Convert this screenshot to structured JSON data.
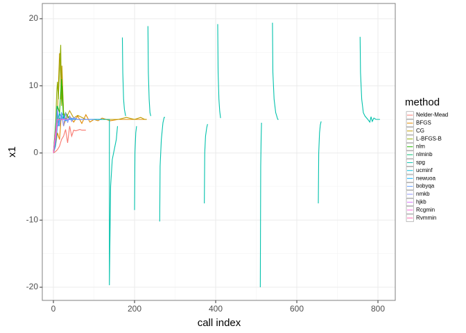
{
  "chart_data": {
    "type": "line",
    "x_label": "call index",
    "y_label": "x1",
    "legend_title": "method",
    "xlim": [
      -27.4,
      842.7
    ],
    "ylim": [
      -21.96,
      22.27
    ],
    "xticks": [
      0,
      200,
      400,
      600,
      800
    ],
    "yticks": [
      -20,
      -10,
      0,
      10,
      20
    ],
    "xminor": [
      100,
      300,
      500,
      700
    ],
    "yminor": [
      -15,
      -5,
      5,
      15
    ],
    "grid": true,
    "legend_position": "right",
    "series": [
      {
        "name": "Nelder-Mead",
        "color": "#F8766D",
        "x": [
          0,
          5,
          10,
          15,
          20,
          25,
          30,
          35,
          40,
          45,
          50,
          55,
          60,
          65,
          70,
          75,
          80
        ],
        "values": [
          0,
          0.2,
          0.5,
          1,
          2,
          2.5,
          3.5,
          1.5,
          4,
          2.5,
          3.4,
          3.3,
          3.4,
          3.5,
          3.4,
          3.4,
          3.4
        ]
      },
      {
        "name": "BFGS",
        "color": "#E18A00",
        "x": [
          0,
          5,
          10,
          15,
          20,
          25,
          30,
          40,
          50,
          60,
          70,
          80,
          90,
          100,
          110,
          120,
          140,
          160,
          180,
          200,
          220,
          230
        ],
        "values": [
          0,
          1,
          3,
          2,
          6,
          4,
          5,
          5.5,
          4.6,
          5.5,
          4.4,
          5.7,
          4.6,
          5,
          4.8,
          5.2,
          4.8,
          5,
          5,
          5,
          5,
          5
        ]
      },
      {
        "name": "CG",
        "color": "#BE9C00",
        "x": [
          0,
          5,
          10,
          15,
          17,
          19,
          21,
          25,
          30,
          40,
          50,
          60,
          70,
          80,
          100,
          120,
          140,
          160,
          180,
          200,
          215,
          225,
          230
        ],
        "values": [
          0,
          2,
          6,
          14.8,
          14.8,
          8,
          13,
          6,
          5,
          6.3,
          5.2,
          5.6,
          5.3,
          5,
          5,
          5,
          5,
          5,
          5.3,
          5,
          5.3,
          5,
          5
        ]
      },
      {
        "name": "L-BFGS-B",
        "color": "#8CAB00",
        "x": [
          0,
          5,
          8,
          10,
          12,
          15,
          18,
          20,
          22,
          25,
          30,
          35
        ],
        "values": [
          0,
          3,
          9,
          10.6,
          8,
          12,
          16.1,
          7,
          10,
          6,
          5,
          5
        ]
      },
      {
        "name": "nlm",
        "color": "#24B700",
        "x": [
          0,
          5,
          10,
          15,
          20,
          25,
          30,
          40,
          50
        ],
        "values": [
          0,
          4,
          7,
          6,
          11,
          5,
          6,
          5,
          5
        ]
      },
      {
        "name": "nlminb",
        "color": "#00BE70",
        "x": [
          0,
          5,
          10,
          15,
          20,
          25,
          30
        ],
        "values": [
          0,
          3,
          6,
          5,
          5.5,
          5,
          5
        ]
      },
      {
        "name": "spg",
        "color": "#00C1AB",
        "x": [
          0,
          3,
          6,
          9,
          12,
          15,
          20,
          25,
          30,
          40,
          60,
          80,
          100,
          120,
          135,
          138,
          138,
          141,
          145,
          150,
          155,
          158,
          164,
          170,
          171,
          173,
          175,
          178,
          189,
          200,
          201,
          203,
          205,
          219,
          233,
          234,
          236,
          238,
          240,
          251,
          262,
          263,
          266,
          270,
          273,
          275,
          323,
          372,
          373,
          375,
          378,
          380,
          392,
          405,
          406,
          408,
          410,
          412,
          461,
          510,
          511,
          512,
          513,
          526,
          540,
          541,
          544,
          548,
          553,
          555,
          604,
          653,
          654,
          656,
          658,
          660,
          708,
          756,
          757,
          760,
          764,
          768,
          775,
          780,
          783,
          786,
          790,
          795,
          805
        ],
        "values": [
          0,
          1,
          3,
          7,
          4,
          6,
          5,
          5.5,
          4.8,
          5,
          5,
          5,
          5,
          5,
          5,
          5,
          -19.7,
          -5,
          -1,
          0.5,
          2,
          4,
          null,
          17.2,
          12,
          8,
          6.5,
          5.5,
          null,
          -8.5,
          0,
          3,
          4,
          null,
          18.9,
          12,
          8,
          6,
          5.5,
          null,
          -10.2,
          -2,
          2,
          4.5,
          5.3,
          5.3,
          null,
          -7.5,
          0,
          2.5,
          3.8,
          4.3,
          null,
          19.2,
          12,
          8,
          6.2,
          5.2,
          null,
          -20,
          -2,
          2,
          4.5,
          null,
          19.4,
          12,
          8,
          6,
          5,
          5,
          null,
          -7.5,
          0,
          3,
          4.2,
          4.7,
          null,
          17.3,
          12,
          8,
          6,
          5.5,
          5,
          4.6,
          5.4,
          4.7,
          5.2,
          5,
          5
        ]
      },
      {
        "name": "ucminf",
        "color": "#00BBDA",
        "x": [
          0,
          5,
          10,
          15,
          20,
          30,
          40,
          50
        ],
        "values": [
          0,
          2,
          5,
          4,
          6,
          5,
          5,
          5
        ]
      },
      {
        "name": "newuoa",
        "color": "#00ACFC",
        "x": [
          0,
          5,
          10,
          20,
          30,
          40,
          60,
          80,
          100,
          120
        ],
        "values": [
          0,
          1,
          4,
          5.5,
          4.8,
          5.2,
          5,
          5,
          5,
          5
        ]
      },
      {
        "name": "bobyqa",
        "color": "#619CFF",
        "x": [
          0,
          5,
          10,
          20,
          30,
          40,
          60,
          80,
          100
        ],
        "values": [
          0,
          2,
          4,
          5.3,
          4.9,
          5.1,
          5,
          5,
          5
        ]
      },
      {
        "name": "nmkb",
        "color": "#8B93FF",
        "x": [
          0,
          5,
          10,
          15,
          20,
          25,
          30,
          35,
          40,
          45,
          50,
          60,
          70,
          80,
          90
        ],
        "values": [
          0,
          3,
          6.5,
          4,
          6,
          4,
          6,
          4.5,
          5.5,
          4.7,
          5.3,
          5,
          5,
          5,
          5
        ]
      },
      {
        "name": "hjkb",
        "color": "#D575FE",
        "x": [
          0,
          5,
          10,
          20,
          30,
          40
        ],
        "values": [
          0,
          2,
          5,
          5,
          5,
          5
        ]
      },
      {
        "name": "Rcgmin",
        "color": "#F962DD",
        "x": [
          0,
          5,
          10,
          20,
          30
        ],
        "values": [
          0,
          3,
          5,
          5,
          5
        ]
      },
      {
        "name": "Rvmmin",
        "color": "#FF65AC",
        "x": [
          0,
          5,
          10,
          15,
          20
        ],
        "values": [
          0,
          2,
          5,
          5,
          5
        ]
      }
    ]
  }
}
